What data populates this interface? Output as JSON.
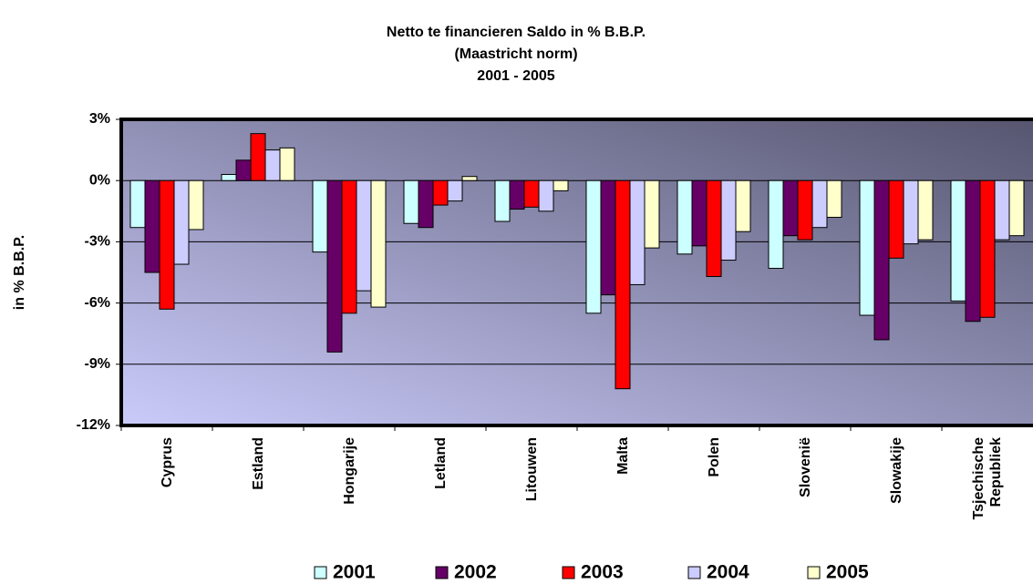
{
  "chart_data": {
    "type": "bar",
    "title_lines": [
      "Netto te financieren Saldo in % B.B.P.",
      "(Maastricht norm)",
      "2001 - 2005"
    ],
    "y_label": "in % B.B.P.",
    "categories": [
      "Cyprus",
      "Estland",
      "Hongarije",
      "Letland",
      "Litouwen",
      "Malta",
      "Polen",
      "Slovenië",
      "Slowakije",
      "Tsjechische Republiek"
    ],
    "series": [
      {
        "name": "2001",
        "color": "#ccffff",
        "values": [
          -2.3,
          0.3,
          -3.5,
          -2.1,
          -2.0,
          -6.5,
          -3.6,
          -4.3,
          -6.6,
          -5.9
        ]
      },
      {
        "name": "2002",
        "color": "#660066",
        "values": [
          -4.5,
          1.0,
          -8.4,
          -2.3,
          -1.4,
          -5.6,
          -3.2,
          -2.7,
          -7.8,
          -6.9
        ]
      },
      {
        "name": "2003",
        "color": "#ff0000",
        "values": [
          -6.3,
          2.3,
          -6.5,
          -1.2,
          -1.3,
          -10.2,
          -4.7,
          -2.9,
          -3.8,
          -6.7
        ]
      },
      {
        "name": "2004",
        "color": "#ccccff",
        "values": [
          -4.1,
          1.5,
          -5.4,
          -1.0,
          -1.5,
          -5.1,
          -3.9,
          -2.3,
          -3.1,
          -2.9
        ]
      },
      {
        "name": "2005",
        "color": "#ffffcc",
        "values": [
          -2.4,
          1.6,
          -6.2,
          0.2,
          -0.5,
          -3.3,
          -2.5,
          -1.8,
          -2.9,
          -2.7
        ]
      }
    ],
    "ylim": [
      -12,
      3
    ],
    "yticks": [
      {
        "value": -12,
        "label": "-12%"
      },
      {
        "value": -9,
        "label": "-9%"
      },
      {
        "value": -6,
        "label": "-6%"
      },
      {
        "value": -3,
        "label": "-3%"
      },
      {
        "value": 0,
        "label": "0%"
      },
      {
        "value": 3,
        "label": "3%"
      }
    ],
    "grid": true,
    "legend": "bottom"
  }
}
